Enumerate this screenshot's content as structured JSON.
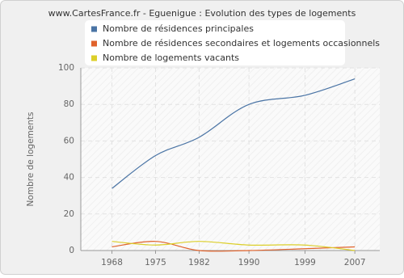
{
  "chart_data": {
    "type": "line",
    "title": "www.CartesFrance.fr - Eguenigue : Evolution des types de logements",
    "y_label": "Nombre de logements",
    "x": [
      1968,
      1975,
      1982,
      1990,
      1999,
      2007
    ],
    "xlim": [
      1963,
      2011
    ],
    "xticks": [
      1968,
      1975,
      1982,
      1990,
      1999,
      2007
    ],
    "ylim": [
      0,
      100
    ],
    "yticks": [
      0,
      20,
      40,
      60,
      80,
      100
    ],
    "grid": true,
    "series": [
      {
        "name": "Nombre de résidences principales",
        "color": "#4a74a5",
        "values": [
          34,
          52,
          62,
          80,
          85,
          94
        ]
      },
      {
        "name": "Nombre de résidences secondaires et logements occasionnels",
        "color": "#e0622b",
        "values": [
          2,
          5,
          0,
          0,
          1,
          2
        ]
      },
      {
        "name": "Nombre de logements vacants",
        "color": "#dccf2a",
        "values": [
          5,
          3,
          5,
          3,
          3,
          0
        ]
      }
    ]
  }
}
